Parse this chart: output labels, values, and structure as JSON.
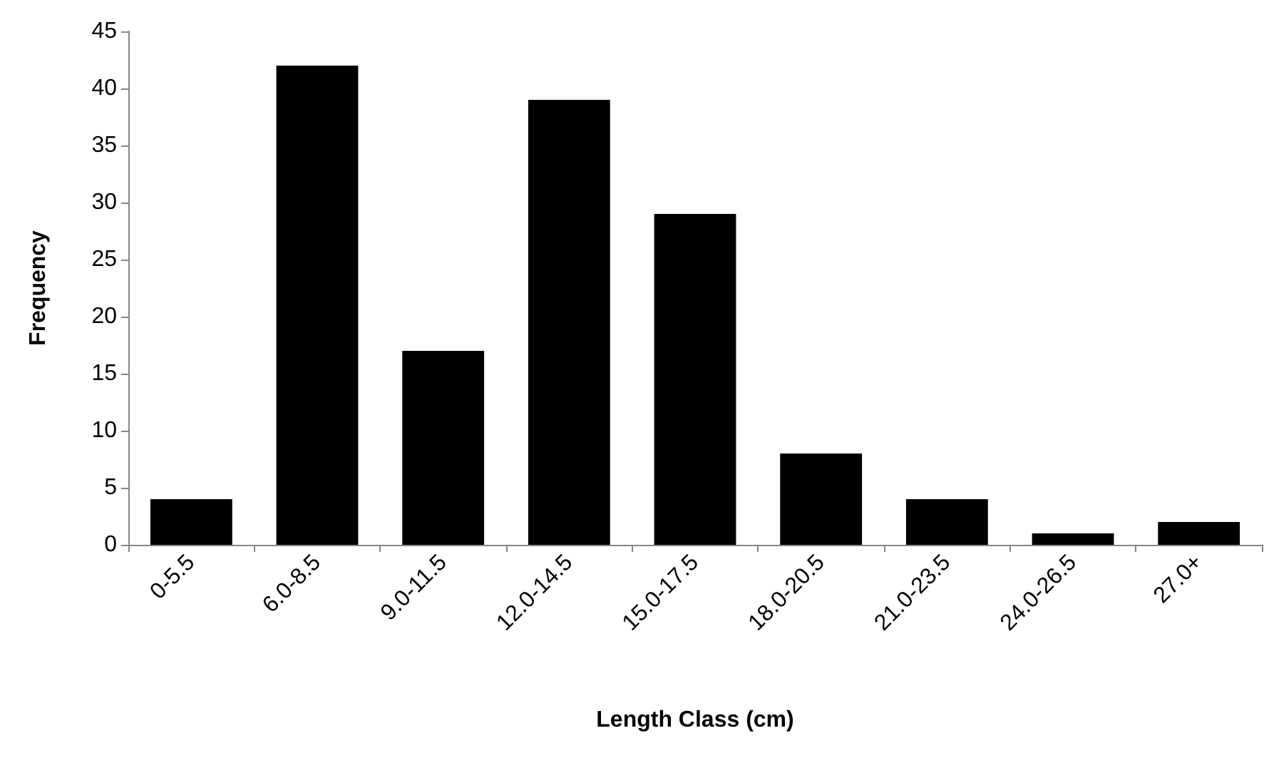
{
  "chart_data": {
    "type": "bar",
    "xlabel": "Length Class (cm)",
    "ylabel": "Frequency",
    "categories": [
      "0-5.5",
      "6.0-8.5",
      "9.0-11.5",
      "12.0-14.5",
      "15.0-17.5",
      "18.0-20.5",
      "21.0-23.5",
      "24.0-26.5",
      "27.0+"
    ],
    "values": [
      4,
      42,
      17,
      39,
      29,
      8,
      4,
      1,
      2
    ],
    "color": "#000000",
    "ylim": [
      0,
      45
    ],
    "yticks": [
      0,
      5,
      10,
      15,
      20,
      25,
      30,
      35,
      40,
      45
    ],
    "grid": false
  }
}
